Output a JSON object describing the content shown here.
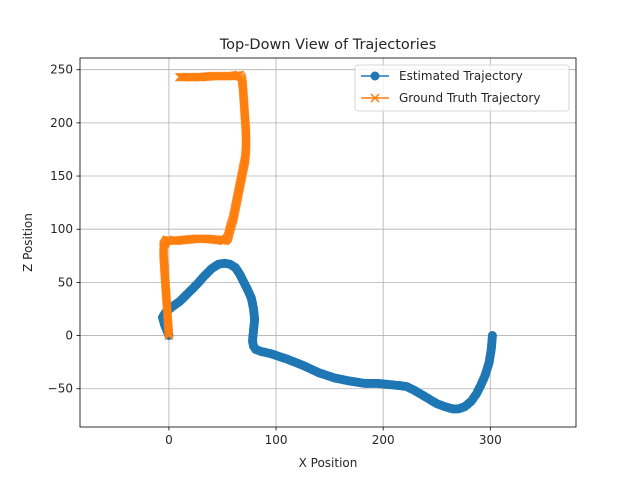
{
  "chart_data": {
    "type": "line",
    "title": "Top-Down View of Trajectories",
    "xlabel": "X Position",
    "ylabel": "Z Position",
    "xlim": [
      -83,
      380
    ],
    "ylim": [
      -86,
      261
    ],
    "xticks": [
      0,
      100,
      200,
      300
    ],
    "yticks": [
      -50,
      0,
      50,
      100,
      150,
      200,
      250
    ],
    "grid": true,
    "legend_position": "top-right",
    "series": [
      {
        "name": "Estimated Trajectory",
        "color": "#1f77b4",
        "marker": "circle",
        "x": [
          0,
          -2,
          -4,
          -6,
          -3,
          3,
          10,
          18,
          26,
          33,
          40,
          46,
          52,
          57,
          62,
          66,
          70,
          74,
          77,
          79,
          80,
          79,
          78,
          79,
          81,
          86,
          95,
          110,
          125,
          140,
          155,
          170,
          183,
          195,
          205,
          215,
          222,
          230,
          240,
          250,
          258,
          265,
          270,
          276,
          282,
          287,
          291,
          295,
          299,
          301,
          302
        ],
        "y": [
          0,
          5,
          10,
          17,
          22,
          27,
          32,
          40,
          48,
          56,
          63,
          67,
          68,
          67,
          64,
          58,
          50,
          42,
          35,
          25,
          15,
          5,
          -5,
          -10,
          -13,
          -15,
          -17,
          -22,
          -28,
          -35,
          -40,
          -43,
          -45,
          -45,
          -46,
          -47,
          -48,
          -52,
          -58,
          -64,
          -67,
          -69,
          -69,
          -67,
          -62,
          -55,
          -47,
          -38,
          -25,
          -12,
          0
        ]
      },
      {
        "name": "Ground Truth Trajectory",
        "color": "#ff7f0e",
        "marker": "x",
        "x": [
          0,
          -1,
          -2,
          -3,
          -4,
          -5,
          -5,
          -2,
          5,
          15,
          25,
          35,
          45,
          52,
          55,
          57,
          60,
          63,
          66,
          69,
          71,
          72,
          72,
          71,
          70,
          69,
          68,
          66,
          60,
          50,
          40,
          30,
          20,
          10
        ],
        "y": [
          0,
          15,
          30,
          45,
          60,
          75,
          85,
          90,
          89,
          90,
          91,
          91,
          90,
          89,
          92,
          100,
          110,
          125,
          140,
          155,
          165,
          175,
          190,
          205,
          220,
          235,
          242,
          245,
          244,
          244,
          244,
          243,
          243,
          243
        ]
      }
    ]
  }
}
